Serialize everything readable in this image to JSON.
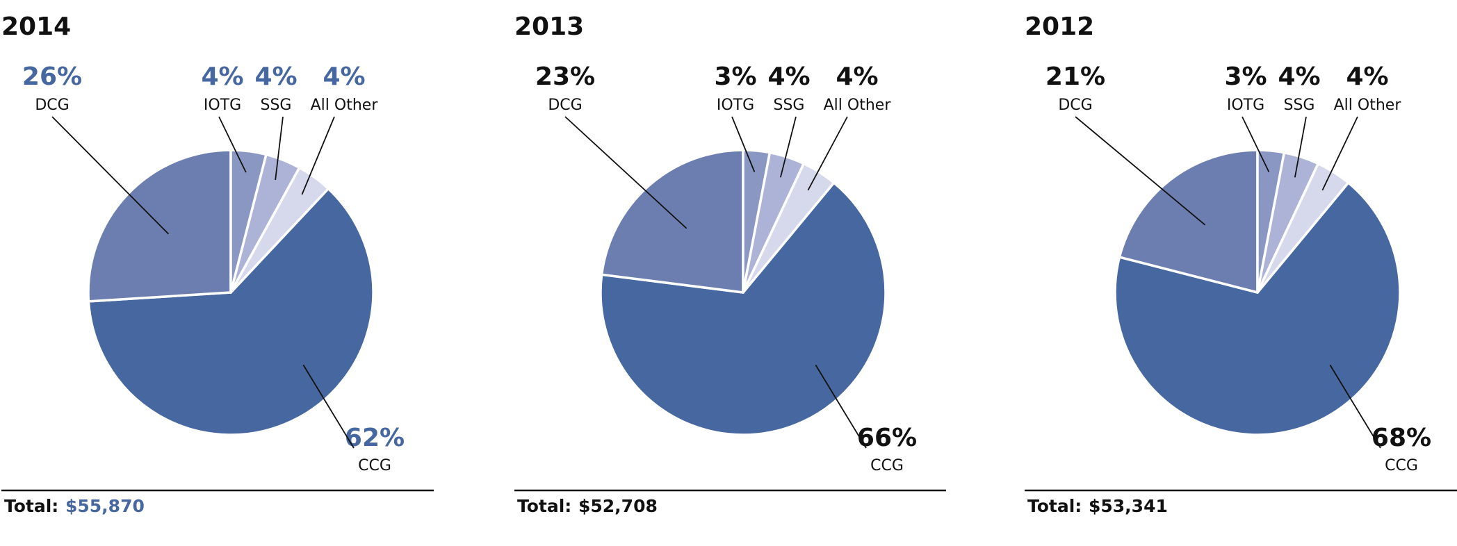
{
  "colors": {
    "accent": "#4667a0",
    "text": "#111111",
    "CCG": "#4667a0",
    "DCG": "#6c7db0",
    "IOTG": "#8b97c3",
    "SSG": "#adb3d6",
    "All Other": "#d6d8eb"
  },
  "chart_data": [
    {
      "type": "pie",
      "title": "2014",
      "total_label": "Total:",
      "total_value": "$55,870",
      "highlight": true,
      "slices": [
        {
          "name": "CCG",
          "value": 62,
          "label": "62%"
        },
        {
          "name": "DCG",
          "value": 26,
          "label": "26%"
        },
        {
          "name": "IOTG",
          "value": 4,
          "label": "4%"
        },
        {
          "name": "SSG",
          "value": 4,
          "label": "4%"
        },
        {
          "name": "All Other",
          "value": 4,
          "label": "4%"
        }
      ]
    },
    {
      "type": "pie",
      "title": "2013",
      "total_label": "Total:",
      "total_value": "$52,708",
      "highlight": false,
      "slices": [
        {
          "name": "CCG",
          "value": 66,
          "label": "66%"
        },
        {
          "name": "DCG",
          "value": 23,
          "label": "23%"
        },
        {
          "name": "IOTG",
          "value": 3,
          "label": "3%"
        },
        {
          "name": "SSG",
          "value": 4,
          "label": "4%"
        },
        {
          "name": "All Other",
          "value": 4,
          "label": "4%"
        }
      ]
    },
    {
      "type": "pie",
      "title": "2012",
      "total_label": "Total:",
      "total_value": "$53,341",
      "highlight": false,
      "slices": [
        {
          "name": "CCG",
          "value": 68,
          "label": "68%"
        },
        {
          "name": "DCG",
          "value": 21,
          "label": "21%"
        },
        {
          "name": "IOTG",
          "value": 3,
          "label": "3%"
        },
        {
          "name": "SSG",
          "value": 4,
          "label": "4%"
        },
        {
          "name": "All Other",
          "value": 4,
          "label": "4%"
        }
      ]
    }
  ]
}
